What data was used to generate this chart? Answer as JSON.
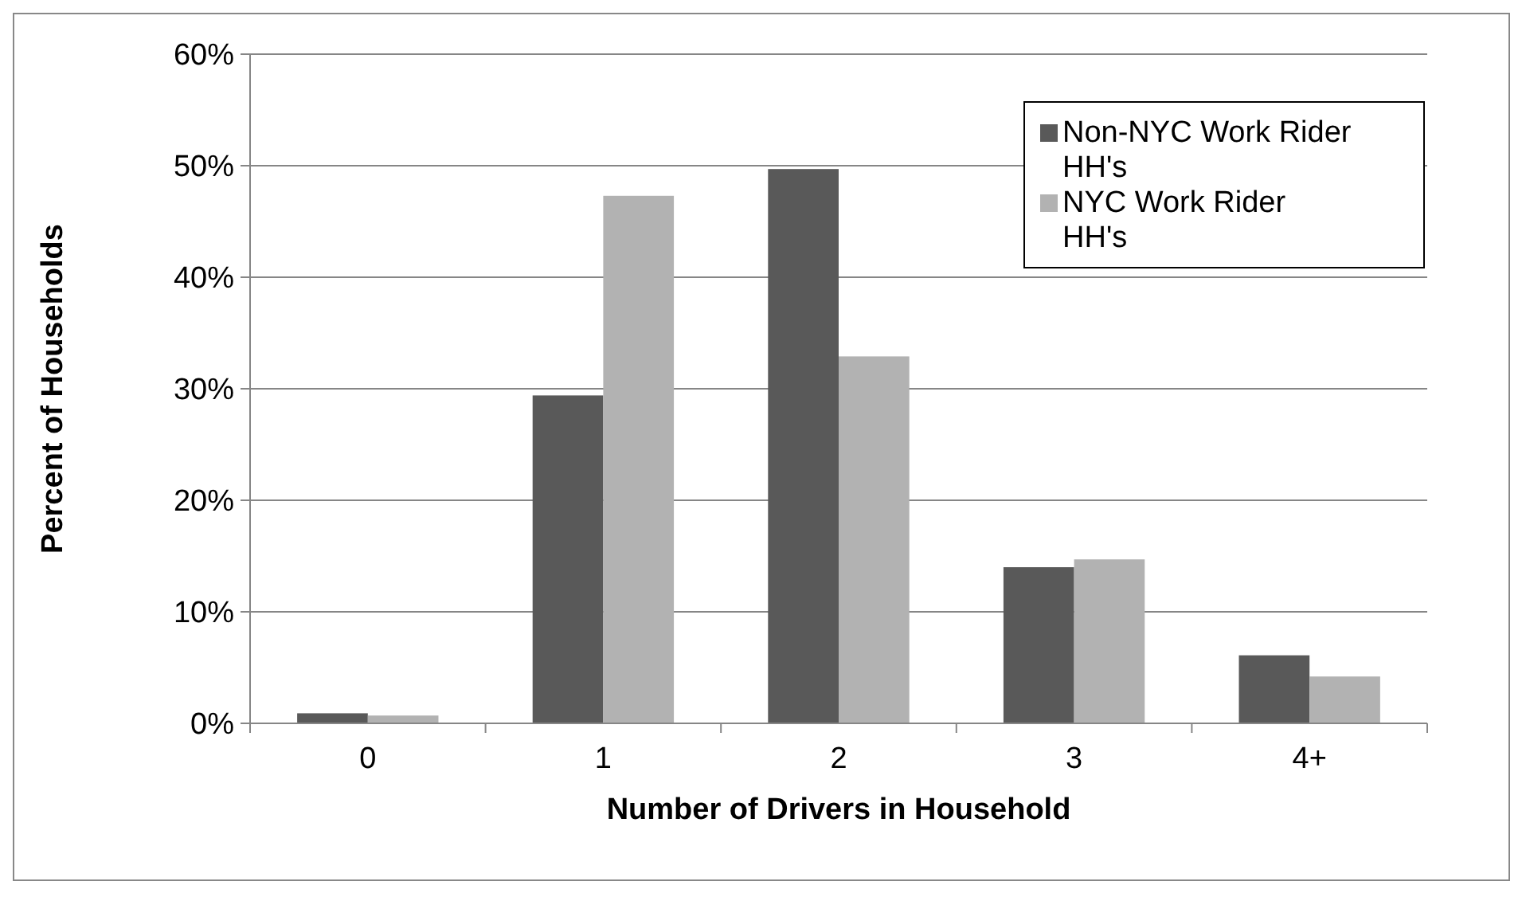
{
  "chart_data": {
    "type": "bar",
    "xlabel": "Number of Drivers in Household",
    "ylabel": "Percent of Households",
    "categories": [
      "0",
      "1",
      "2",
      "3",
      "4+"
    ],
    "series": [
      {
        "name": "Non-NYC Work Rider HH's",
        "color": "#595959",
        "values": [
          0.9,
          29.4,
          49.7,
          14.0,
          6.1
        ]
      },
      {
        "name": "NYC Work Rider HH's",
        "color": "#b2b2b2",
        "values": [
          0.7,
          47.3,
          32.9,
          14.7,
          4.2
        ]
      }
    ],
    "ylim": [
      0,
      60
    ],
    "yticks": [
      {
        "value": 0,
        "label": "0%"
      },
      {
        "value": 10,
        "label": "10%"
      },
      {
        "value": 20,
        "label": "20%"
      },
      {
        "value": 30,
        "label": "30%"
      },
      {
        "value": 40,
        "label": "40%"
      },
      {
        "value": 50,
        "label": "50%"
      },
      {
        "value": 60,
        "label": "60%"
      }
    ],
    "grid": "y",
    "legend": "top right"
  }
}
